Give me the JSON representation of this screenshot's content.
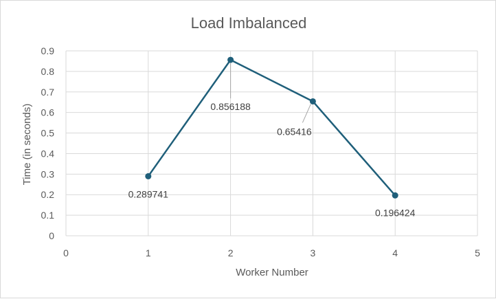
{
  "chart_data": {
    "type": "scatter",
    "title": "Load Imbalanced",
    "xlabel": "Worker Number",
    "ylabel": "Time (in seconds)",
    "xlim": [
      0,
      5
    ],
    "ylim": [
      0,
      0.9
    ],
    "xticks": [
      "0",
      "1",
      "2",
      "3",
      "4",
      "5"
    ],
    "yticks": [
      "0",
      "0.1",
      "0.2",
      "0.3",
      "0.4",
      "0.5",
      "0.6",
      "0.7",
      "0.8",
      "0.9"
    ],
    "grid": true,
    "legend": "none",
    "series": [
      {
        "x": [
          1,
          2,
          3,
          4
        ],
        "y": [
          0.289741,
          0.856188,
          0.65416,
          0.196424
        ],
        "labels": [
          "0.289741",
          "0.856188",
          "0.65416",
          "0.196424"
        ],
        "color": "#1f5f7a"
      }
    ]
  }
}
